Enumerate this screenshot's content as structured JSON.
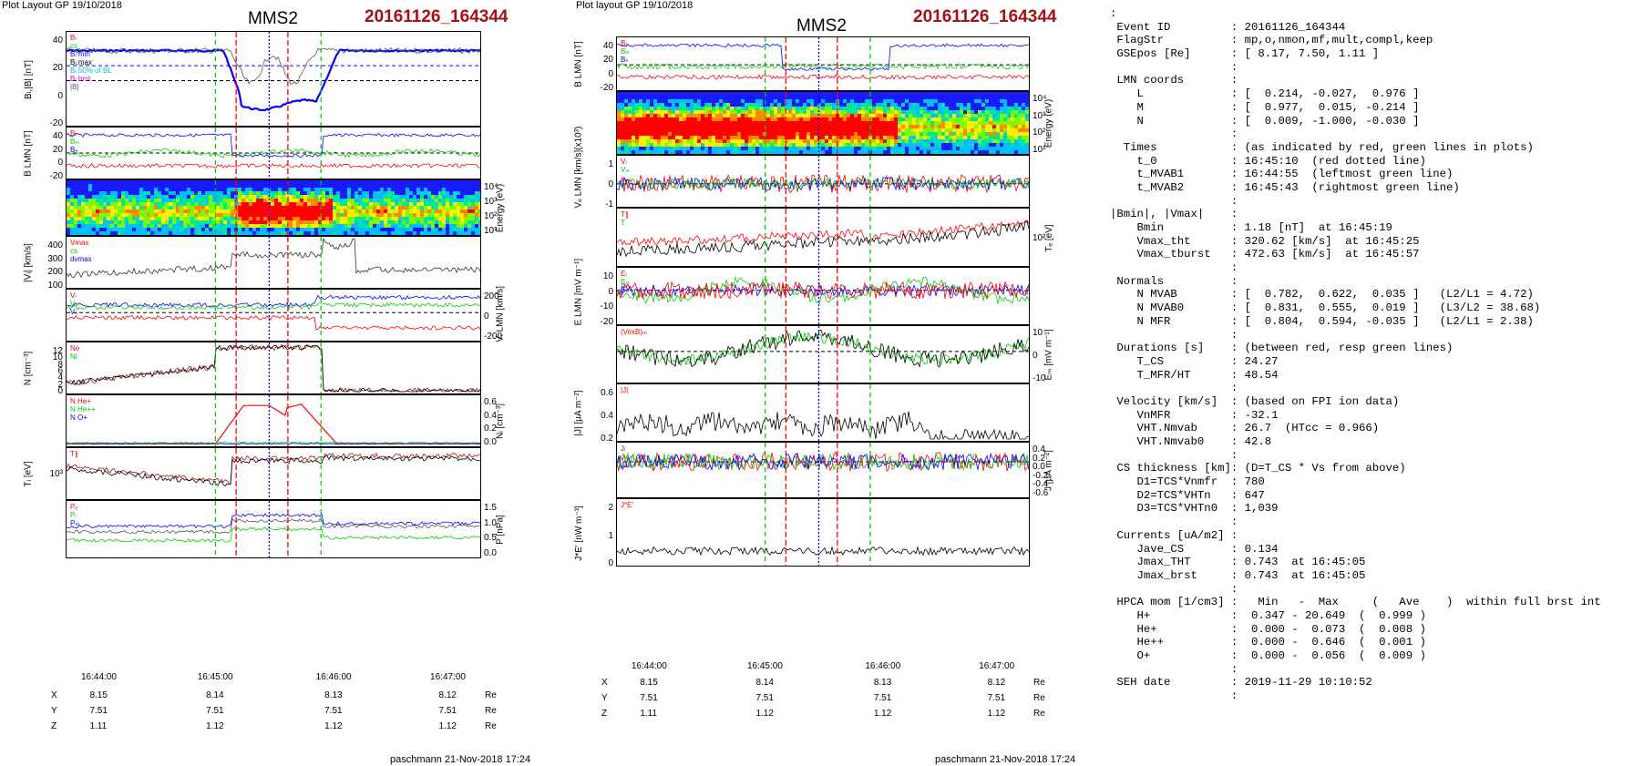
{
  "left": {
    "header": "Plot Layout GP 19/10/2018",
    "mms": "MMS2",
    "event": "20161126_164344",
    "footer": "paschmann 21-Nov-2018 17:24",
    "panels": [
      {
        "ylabel": "Bₗ,|B| [nT]",
        "yticks": [
          "40",
          "20",
          "0",
          "-20"
        ],
        "rticks": [],
        "legend": [
          "Bₗ",
          "cs",
          "Bₗ min",
          "Bₗ,max",
          "Bₗ 50% of BL",
          "Bₗ brst",
          "|B|"
        ]
      },
      {
        "ylabel": "B LMN [nT]",
        "yticks": [
          "40",
          "20",
          "0",
          "-20"
        ],
        "rticks": [],
        "legend": [
          "Bₗ",
          "Bₘ",
          "Bₙ"
        ]
      },
      {
        "ylabel": "Energy (eV)",
        "yticks": [],
        "rticks": [
          "10⁴",
          "10³",
          "10²",
          "10¹"
        ],
        "legend": []
      },
      {
        "ylabel": "|Vᵢ| [km/s]",
        "yticks": [
          "400",
          "300",
          "200",
          "100"
        ],
        "rticks": [],
        "legend": [
          "Vmax",
          "cs",
          "dvmax"
        ]
      },
      {
        "ylabel": "Vᵢ LMN [km/s]",
        "yticks": [],
        "rticks": [
          "200",
          "0",
          "-200"
        ],
        "legend": [
          "Vₗ",
          "Vₘ",
          "Vₙ"
        ]
      },
      {
        "ylabel": "N [cm⁻³]",
        "yticks": [
          "12",
          "10",
          "8",
          "6",
          "4",
          "2",
          "0"
        ],
        "rticks": [],
        "legend": [
          "Ne",
          "Ni"
        ]
      },
      {
        "ylabel": "Nᵢ [cm⁻³]",
        "yticks": [],
        "rticks": [
          "0.6",
          "0.4",
          "0.2",
          "0.0"
        ],
        "legend": [
          "N He+",
          "N He++",
          "N O+"
        ]
      },
      {
        "ylabel": "Tᵢ [eV]",
        "yticks": [
          "10³"
        ],
        "rticks": [],
        "legend": [
          "T∥"
        ]
      },
      {
        "ylabel": "P [nPa]",
        "yticks": [],
        "rticks": [
          "1.5",
          "1.0",
          "0.5",
          "0.0"
        ],
        "legend": [
          "Pₑ",
          "Pᵢ",
          "Pₘ"
        ]
      }
    ],
    "xticks": [
      "16:44:00",
      "16:45:00",
      "16:46:00",
      "16:47:00"
    ],
    "pos": {
      "labels": [
        "X",
        "Y",
        "Z"
      ],
      "X": [
        "8.15",
        "8.14",
        "8.13",
        "8.12"
      ],
      "Y": [
        "7.51",
        "7.51",
        "7.51",
        "7.51"
      ],
      "Z": [
        "1.11",
        "1.12",
        "1.12",
        "1.12"
      ],
      "unit": "Re"
    }
  },
  "middle": {
    "header": "Plot layout GP 19/10/2018",
    "mms": "MMS2",
    "event": "20161126_164344",
    "footer": "paschmann 21-Nov-2018 17:24",
    "panels": [
      {
        "ylabel": "B LMN [nT]",
        "yticks": [
          "40",
          "20",
          "0",
          "-20"
        ],
        "rticks": [],
        "legend": [
          "Bₗ",
          "Bₘ",
          "Bₙ"
        ]
      },
      {
        "ylabel": "Energy (eV)",
        "yticks": [],
        "rticks": [
          "10⁴",
          "10³",
          "10²",
          "10¹"
        ],
        "legend": []
      },
      {
        "ylabel": "Vₑ LMN [km/s](x10³)",
        "yticks": [
          "1",
          "0",
          "-1"
        ],
        "rticks": [],
        "legend": [
          "Vₗ",
          "Vₘ"
        ]
      },
      {
        "ylabel": "Tₑ [eV]",
        "yticks": [],
        "rticks": [
          "10²"
        ],
        "legend": [
          "T∥",
          "T"
        ]
      },
      {
        "ylabel": "E LMN [mV m⁻¹]",
        "yticks": [
          "10",
          "0",
          "-10",
          "-20"
        ],
        "rticks": [],
        "legend": [
          "Eₗ",
          "Eₘ",
          "Eₙ"
        ]
      },
      {
        "ylabel": "Eₘ [mV m⁻¹]",
        "yticks": [],
        "rticks": [
          "10",
          "0",
          "-10"
        ],
        "legend": [
          "(VexB)ₘ"
        ]
      },
      {
        "ylabel": "|J| [μA m⁻²]",
        "yticks": [
          "0.6",
          "0.4",
          "0.2"
        ],
        "rticks": [],
        "legend": [
          "|J|"
        ]
      },
      {
        "ylabel": "J [μA m⁻²]",
        "yticks": [],
        "rticks": [
          "0.4",
          "0.2",
          "0.0",
          "-0.2",
          "-0.4",
          "-0.6"
        ],
        "legend": [
          "Jₗ",
          "Jₘ",
          "Jₙ"
        ]
      },
      {
        "ylabel": "J*E' [nW m⁻³]",
        "yticks": [
          "2",
          "1",
          "0"
        ],
        "rticks": [],
        "legend": [
          "J*E'"
        ]
      }
    ],
    "xticks": [
      "16:44:00",
      "16:45:00",
      "16:46:00",
      "16:47:00"
    ],
    "pos": {
      "labels": [
        "X",
        "Y",
        "Z"
      ],
      "X": [
        "8.15",
        "8.14",
        "8.13",
        "8.12"
      ],
      "Y": [
        "7.51",
        "7.51",
        "7.51",
        "7.51"
      ],
      "Z": [
        "1.11",
        "1.12",
        "1.12",
        "1.12"
      ],
      "unit": "Re"
    }
  },
  "text_panel": [
    ":",
    " Event ID         : 20161126_164344",
    " FlagStr          : mp,o,nmon,mf,mult,compl,keep",
    " GSEpos [Re]      : [ 8.17, 7.50, 1.11 ]",
    "                  :",
    " LMN coords       :",
    "    L             : [  0.214, -0.027,  0.976 ]",
    "    M             : [  0.977,  0.015, -0.214 ]",
    "    N             : [  0.009, -1.000, -0.030 ]",
    "                  :",
    "  Times           : (as indicated by red, green lines in plots)",
    "    t_0           : 16:45:10  (red dotted line)",
    "    t_MVAB1       : 16:44:55  (leftmost green line)",
    "    t_MVAB2       : 16:45:43  (rightmost green line)",
    "                  :",
    "|Bmin|, |Vmax|    :",
    "    Bmin          : 1.18 [nT]  at 16:45:19",
    "    Vmax_tht      : 320.62 [km/s]  at 16:45:25",
    "    Vmax_tburst   : 472.63 [km/s]  at 16:45:57",
    "                  :",
    " Normals          :",
    "    N MVAB        : [  0.782,  0.622,  0.035 ]   (L2/L1 = 4.72)",
    "    N MVAB0       : [  0.831,  0.555,  0.019 ]   (L3/L2 = 38.68)",
    "    N MFR         : [  0.804,  0.594, -0.035 ]   (L2/L1 = 2.38)",
    "                  :",
    " Durations [s]    : (between red, resp green lines)",
    "    T_CS          : 24.27",
    "    T_MFR/HT      : 48.54",
    "                  :",
    " Velocity [km/s]  : (based on FPI ion data)",
    "    VnMFR         : -32.1",
    "    VHT.Nmvab     : 26.7  (HTcc = 0.966)",
    "    VHT.Nmvab0    : 42.8",
    "                  :",
    " CS thickness [km]: (D=T_CS * Vs from above)",
    "    D1=TCS*Vnmfr  : 780",
    "    D2=TCS*VHTn   : 647",
    "    D3=TCS*VHTn0  : 1,039",
    "                  :",
    " Currents [uA/m2] :",
    "    Jave_CS       : 0.134",
    "    Jmax_THT      : 0.743  at 16:45:05",
    "    Jmax_brst     : 0.743  at 16:45:05",
    "                  :",
    " HPCA mom [1/cm3] :   Min   -  Max     (   Ave    )  within full brst int",
    "    H+            :  0.347 - 20.649  (  0.999 )",
    "    He+           :  0.000 -  0.073  (  0.008 )",
    "    He++          :  0.000 -  0.646  (  0.001 )",
    "    O+            :  0.000 -  0.056  (  0.009 )",
    "                  :",
    " SEH date         : 2019-11-29 10:10:52",
    "                  :"
  ],
  "colors": {
    "red": "#ff0000",
    "green": "#00cc00",
    "blue": "#0000ff",
    "black": "#000000",
    "darkred": "#a50f15",
    "cyan": "#00bcd4",
    "magenta": "#cc00cc"
  }
}
